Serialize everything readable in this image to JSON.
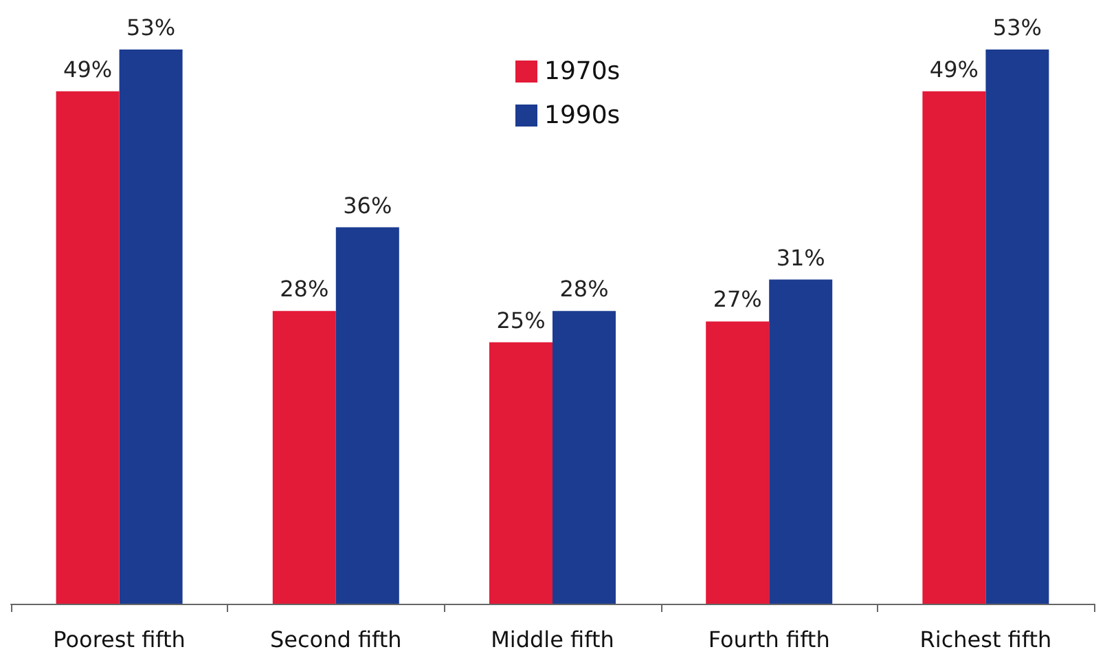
{
  "chart_data": {
    "type": "bar",
    "categories": [
      "Poorest fifth",
      "Second fifth",
      "Middle fifth",
      "Fourth fifth",
      "Richest fifth"
    ],
    "series": [
      {
        "name": "1970s",
        "color": "#e31a38",
        "values": [
          49,
          28,
          25,
          27,
          49
        ],
        "value_labels": [
          "49%",
          "28%",
          "25%",
          "27%",
          "49%"
        ]
      },
      {
        "name": "1990s",
        "color": "#1c3c91",
        "values": [
          53,
          36,
          28,
          31,
          53
        ],
        "value_labels": [
          "53%",
          "36%",
          "28%",
          "31%",
          "53%"
        ]
      }
    ],
    "legend": "top"
  }
}
